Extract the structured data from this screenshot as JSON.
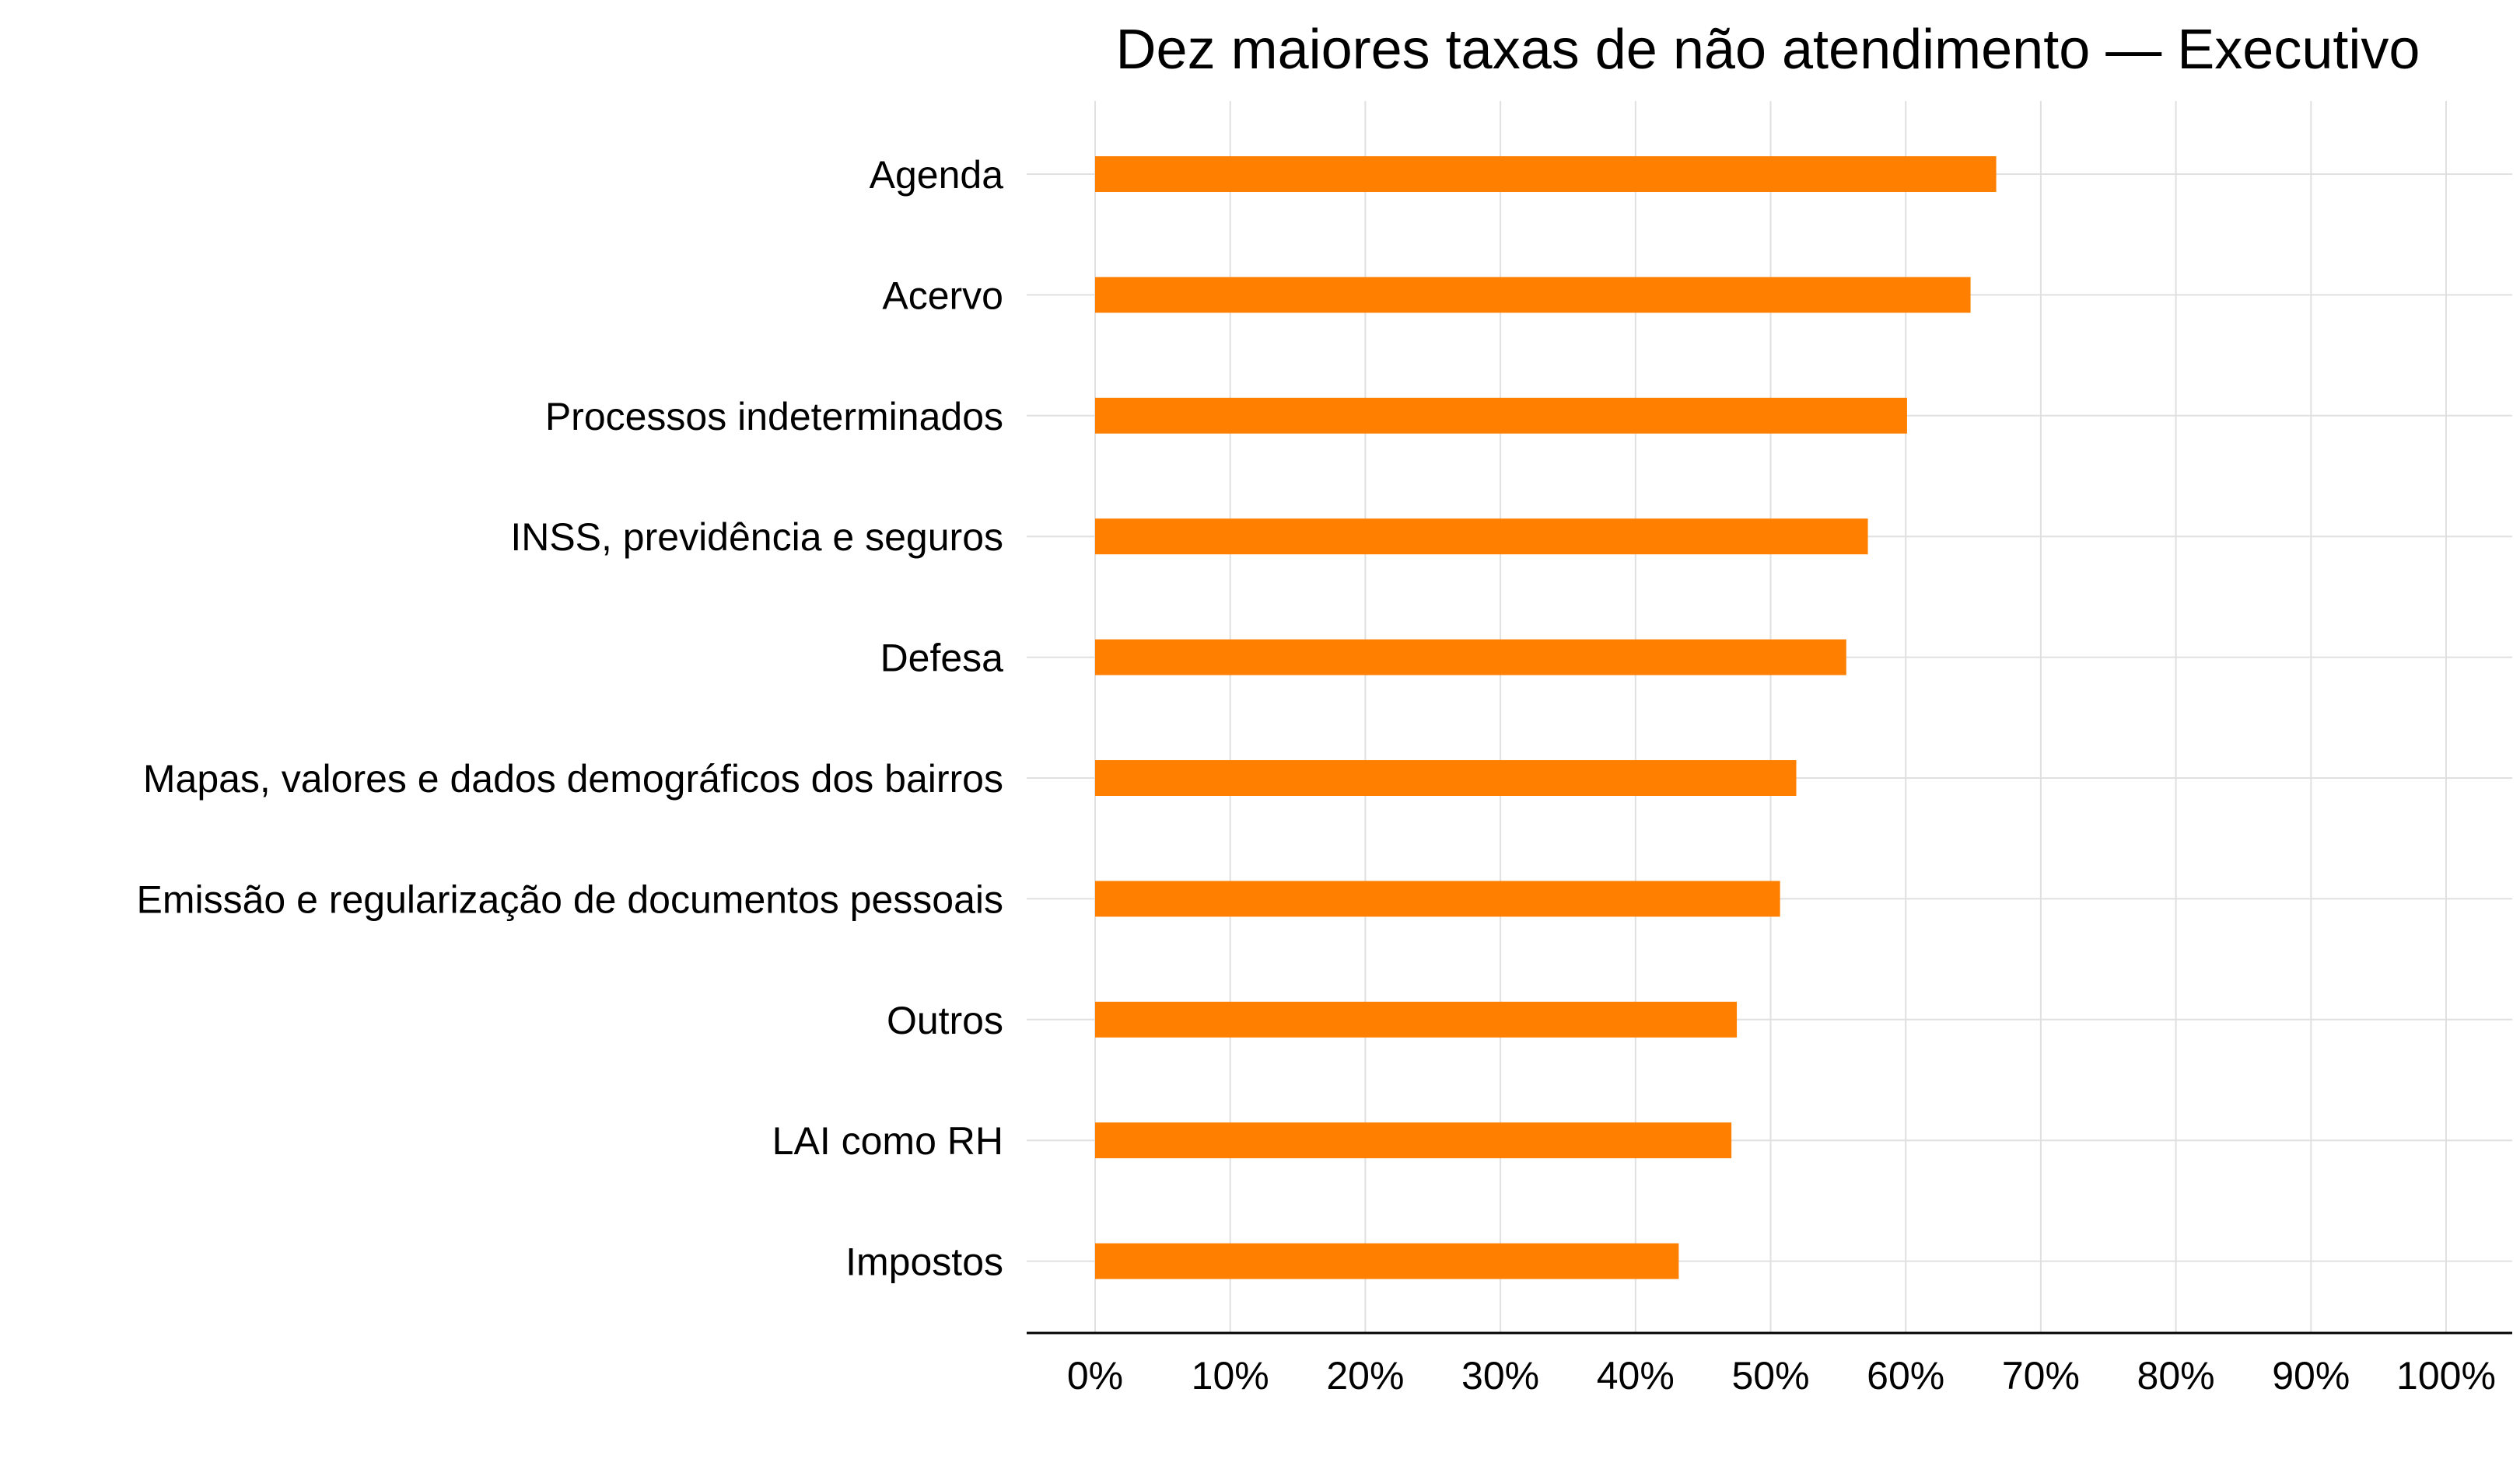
{
  "chart_data": {
    "type": "bar",
    "orientation": "horizontal",
    "title": "Dez maiores taxas de não atendimento — Executivo",
    "xlabel": "",
    "ylabel": "",
    "categories": [
      "Agenda",
      "Acervo",
      "Processos indeterminados",
      "INSS, previdência e seguros",
      "Defesa",
      "Mapas, valores e dados demográficos dos bairros",
      "Emissão e regularização de documentos pessoais",
      "Outros",
      "LAI como RH",
      "Impostos"
    ],
    "values": [
      0.667,
      0.648,
      0.601,
      0.572,
      0.556,
      0.519,
      0.507,
      0.475,
      0.471,
      0.432
    ],
    "xlim": [
      0,
      1
    ],
    "xticks": [
      0,
      0.1,
      0.2,
      0.3,
      0.4,
      0.5,
      0.6,
      0.7,
      0.8,
      0.9,
      1.0
    ],
    "xtick_labels": [
      "0%",
      "10%",
      "20%",
      "30%",
      "40%",
      "50%",
      "60%",
      "70%",
      "80%",
      "90%",
      "100%"
    ],
    "grid": true,
    "bar_color": "#FF8000",
    "grid_color": "#E0E0E0"
  }
}
